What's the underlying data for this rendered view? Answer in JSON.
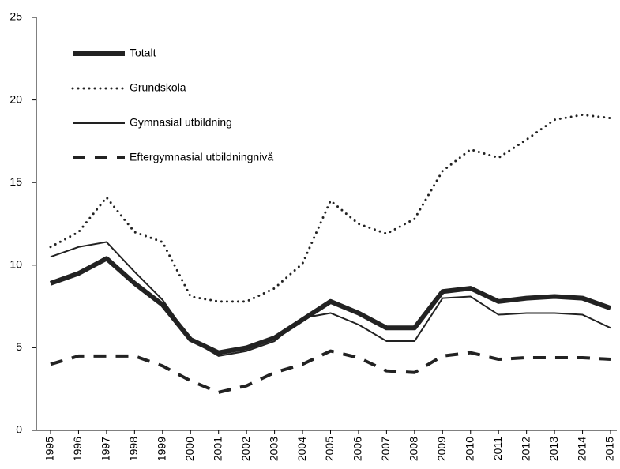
{
  "chart_data": {
    "type": "line",
    "categories": [
      "1995",
      "1996",
      "1997",
      "1998",
      "1999",
      "2000",
      "2001",
      "2002",
      "2003",
      "2004",
      "2005",
      "2006",
      "2007",
      "2008",
      "2009",
      "2010",
      "2011",
      "2012",
      "2013",
      "2014",
      "2015"
    ],
    "series": [
      {
        "name": "Totalt",
        "color": "#222222",
        "style": "thick",
        "values": [
          8.9,
          9.5,
          10.4,
          8.9,
          7.6,
          5.5,
          4.7,
          5.0,
          5.6,
          6.7,
          7.8,
          7.1,
          6.2,
          6.2,
          8.4,
          8.6,
          7.8,
          8.0,
          8.1,
          8.0,
          7.4
        ]
      },
      {
        "name": "Grundskola",
        "color": "#222222",
        "style": "dotted",
        "values": [
          11.1,
          12.0,
          14.1,
          12.0,
          11.4,
          8.1,
          7.8,
          7.8,
          8.6,
          10.1,
          13.9,
          12.5,
          11.9,
          12.8,
          15.7,
          17.0,
          16.5,
          17.6,
          18.8,
          19.1,
          18.9
        ]
      },
      {
        "name": "Gymnasial utbildning",
        "color": "#222222",
        "style": "solid",
        "values": [
          10.5,
          11.1,
          11.4,
          9.6,
          7.9,
          5.5,
          4.5,
          4.8,
          5.4,
          6.8,
          7.1,
          6.4,
          5.4,
          5.4,
          8.0,
          8.1,
          7.0,
          7.1,
          7.1,
          7.0,
          6.2
        ]
      },
      {
        "name": "Eftergymnasial utbildningnivå",
        "color": "#222222",
        "style": "dashed",
        "values": [
          4.0,
          4.5,
          4.5,
          4.5,
          3.9,
          3.0,
          2.3,
          2.7,
          3.5,
          4.0,
          4.8,
          4.4,
          3.6,
          3.5,
          4.5,
          4.7,
          4.3,
          4.4,
          4.4,
          4.4,
          4.3
        ]
      }
    ],
    "ylim": [
      0,
      25
    ],
    "yticks": [
      0,
      5,
      10,
      15,
      20,
      25
    ],
    "grid": false,
    "legend": "top-left"
  }
}
